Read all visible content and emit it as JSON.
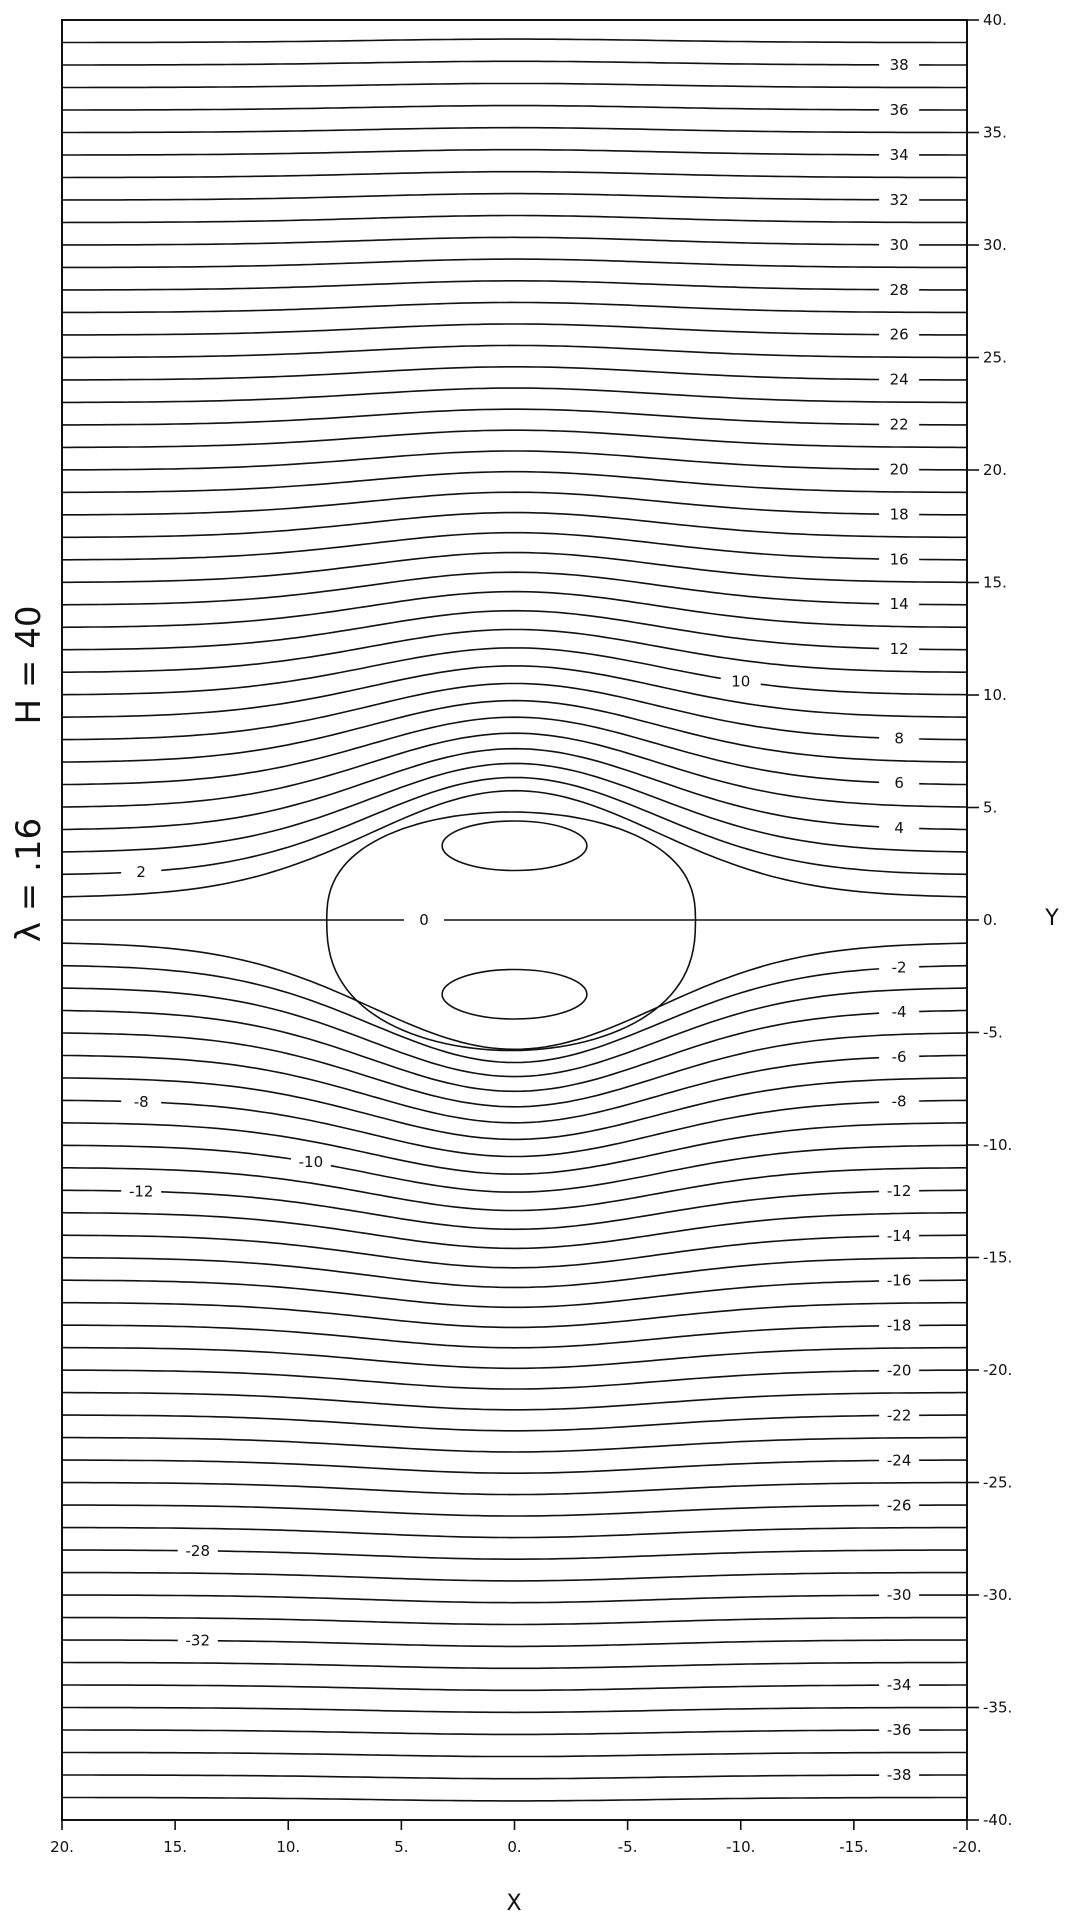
{
  "chart_data": {
    "type": "contour",
    "title": "",
    "parameters": [
      {
        "text": "H = 40"
      },
      {
        "text": "λ = .16"
      }
    ],
    "xlabel": "X",
    "ylabel": "Y",
    "xlim": [
      20,
      -20
    ],
    "ylim": [
      -40,
      40
    ],
    "x_ticks": [
      {
        "value": 20,
        "label": "20."
      },
      {
        "value": 15,
        "label": "15."
      },
      {
        "value": 10,
        "label": "10."
      },
      {
        "value": 5,
        "label": "5."
      },
      {
        "value": 0,
        "label": "0."
      },
      {
        "value": -5,
        "label": "-5."
      },
      {
        "value": -10,
        "label": "-10."
      },
      {
        "value": -15,
        "label": "-15."
      },
      {
        "value": -20,
        "label": "-20."
      }
    ],
    "y_ticks": [
      {
        "value": 40,
        "label": "40."
      },
      {
        "value": 35,
        "label": "35."
      },
      {
        "value": 30,
        "label": "30."
      },
      {
        "value": 25,
        "label": "25."
      },
      {
        "value": 20,
        "label": "20."
      },
      {
        "value": 15,
        "label": "15."
      },
      {
        "value": 10,
        "label": "10."
      },
      {
        "value": 5,
        "label": "5."
      },
      {
        "value": 0,
        "label": "0."
      },
      {
        "value": -5,
        "label": "-5."
      },
      {
        "value": -10,
        "label": "-10."
      },
      {
        "value": -15,
        "label": "-15."
      },
      {
        "value": -20,
        "label": "-20."
      },
      {
        "value": -25,
        "label": "-25."
      },
      {
        "value": -30,
        "label": "-30."
      },
      {
        "value": -35,
        "label": "-35."
      },
      {
        "value": -40,
        "label": "-40."
      }
    ],
    "grid": false,
    "contour_levels": [
      -39,
      -38,
      -37,
      -36,
      -35,
      -34,
      -33,
      -32,
      -31,
      -30,
      -29,
      -28,
      -27,
      -26,
      -25,
      -24,
      -23,
      -22,
      -21,
      -20,
      -19,
      -18,
      -17,
      -16,
      -15,
      -14,
      -13,
      -12,
      -11,
      -10,
      -9,
      -8,
      -7,
      -6,
      -5,
      -4,
      -3,
      -2,
      -1,
      0,
      1,
      2,
      3,
      4,
      5,
      6,
      7,
      8,
      9,
      10,
      11,
      12,
      13,
      14,
      15,
      16,
      17,
      18,
      19,
      20,
      21,
      22,
      23,
      24,
      25,
      26,
      27,
      28,
      29,
      30,
      31,
      32,
      33,
      34,
      35,
      36,
      37,
      38,
      39
    ],
    "contour_labels": [
      {
        "value": 38,
        "label": "38",
        "x": -17
      },
      {
        "value": 36,
        "label": "36",
        "x": -17
      },
      {
        "value": 34,
        "label": "34",
        "x": -17
      },
      {
        "value": 32,
        "label": "32",
        "x": -17
      },
      {
        "value": 30,
        "label": "30",
        "x": -17
      },
      {
        "value": 28,
        "label": "28",
        "x": -17
      },
      {
        "value": 26,
        "label": "26",
        "x": -17
      },
      {
        "value": 24,
        "label": "24",
        "x": -17
      },
      {
        "value": 22,
        "label": "22",
        "x": -17
      },
      {
        "value": 20,
        "label": "20",
        "x": -17
      },
      {
        "value": 18,
        "label": "18",
        "x": -17
      },
      {
        "value": 16,
        "label": "16",
        "x": -17
      },
      {
        "value": 14,
        "label": "14",
        "x": -17
      },
      {
        "value": 12,
        "label": "12",
        "x": -17
      },
      {
        "value": 10,
        "label": "10",
        "x": -10
      },
      {
        "value": 8,
        "label": "8",
        "x": -17
      },
      {
        "value": 6,
        "label": "6",
        "x": -17
      },
      {
        "value": 4,
        "label": "4",
        "x": -17
      },
      {
        "value": 2,
        "label": "2",
        "x": 16.5
      },
      {
        "value": 0,
        "label": "0",
        "x": 4
      },
      {
        "value": -2,
        "label": "-2",
        "x": -17
      },
      {
        "value": -4,
        "label": "-4",
        "x": -17
      },
      {
        "value": -6,
        "label": "-6",
        "x": -17
      },
      {
        "value": -8,
        "label": "-8",
        "x": 16.5
      },
      {
        "value": -8,
        "label": "-8",
        "x": -17
      },
      {
        "value": -10,
        "label": "-10",
        "x": 9
      },
      {
        "value": -12,
        "label": "-12",
        "x": 16.5
      },
      {
        "value": -12,
        "label": "-12",
        "x": -17
      },
      {
        "value": -14,
        "label": "-14",
        "x": -17
      },
      {
        "value": -16,
        "label": "-16",
        "x": -17
      },
      {
        "value": -18,
        "label": "-18",
        "x": -17
      },
      {
        "value": -20,
        "label": "-20",
        "x": -17
      },
      {
        "value": -22,
        "label": "-22",
        "x": -17
      },
      {
        "value": -24,
        "label": "-24",
        "x": -17
      },
      {
        "value": -26,
        "label": "-26",
        "x": -17
      },
      {
        "value": -28,
        "label": "-28",
        "x": 14
      },
      {
        "value": -30,
        "label": "-30",
        "x": -17
      },
      {
        "value": -32,
        "label": "-32",
        "x": 14
      },
      {
        "value": -34,
        "label": "-34",
        "x": -17
      },
      {
        "value": -36,
        "label": "-36",
        "x": -17
      },
      {
        "value": -38,
        "label": "-38",
        "x": -17
      }
    ],
    "recirculation_eddies": [
      {
        "center": [
          0,
          3.3
        ],
        "half_width_x": 3.2,
        "half_height_y": 1.1
      },
      {
        "center": [
          0,
          -3.3
        ],
        "half_width_x": 3.2,
        "half_height_y": 1.1
      }
    ],
    "separatrix": {
      "x_range": [
        8.3,
        -8
      ],
      "y_max": 4.8,
      "y_min": -5.8
    }
  }
}
